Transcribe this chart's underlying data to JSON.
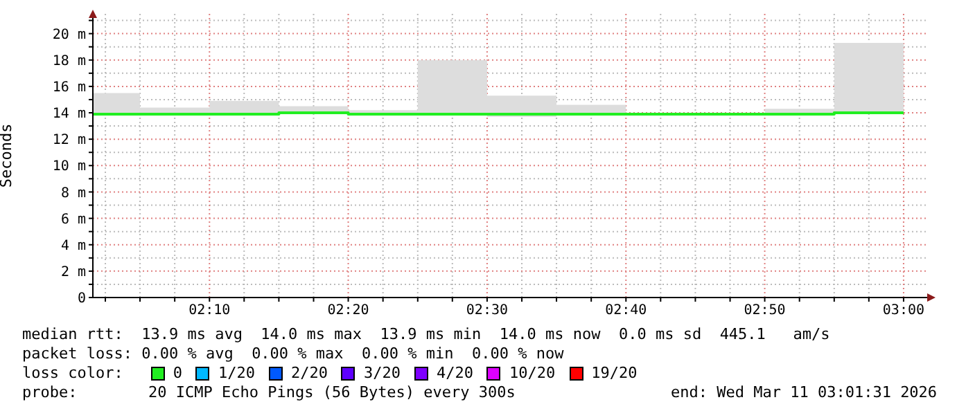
{
  "chart_data": {
    "type": "step",
    "ylabel": "Seconds",
    "x": [
      2.0267,
      2.0833,
      2.1667,
      2.25,
      2.3333,
      2.4167,
      2.5,
      2.5833,
      2.6667,
      2.75,
      2.8333,
      2.9167,
      3.0
    ],
    "series": [
      {
        "color": "#22ee22",
        "values": [
          13.9,
          13.9,
          13.9,
          14.0,
          13.9,
          13.9,
          13.9,
          13.9,
          13.9,
          13.9,
          13.9,
          14.0,
          14.0
        ],
        "lower": [
          14.0,
          14.0,
          14.0,
          14.0,
          14.0,
          14.0,
          13.7,
          14.0,
          13.9,
          13.9,
          14.0,
          14.0,
          14.0
        ],
        "upper": [
          15.5,
          14.4,
          14.9,
          14.5,
          14.2,
          18.0,
          15.3,
          14.6,
          13.9,
          13.9,
          14.3,
          19.3,
          19.3
        ]
      }
    ],
    "xlim": [
      2.0267,
      3.03
    ],
    "xticks": [
      {
        "value": 2.0417,
        "label": null
      },
      {
        "value": 2.0833,
        "label": null
      },
      {
        "value": 2.125,
        "label": null
      },
      {
        "value": 2.1667,
        "label": "02:10"
      },
      {
        "value": 2.2083,
        "label": null
      },
      {
        "value": 2.25,
        "label": null
      },
      {
        "value": 2.2917,
        "label": null
      },
      {
        "value": 2.3333,
        "label": "02:20"
      },
      {
        "value": 2.375,
        "label": null
      },
      {
        "value": 2.4167,
        "label": null
      },
      {
        "value": 2.4583,
        "label": null
      },
      {
        "value": 2.5,
        "label": "02:30"
      },
      {
        "value": 2.5417,
        "label": null
      },
      {
        "value": 2.5833,
        "label": null
      },
      {
        "value": 2.625,
        "label": null
      },
      {
        "value": 2.6667,
        "label": "02:40"
      },
      {
        "value": 2.7083,
        "label": null
      },
      {
        "value": 2.75,
        "label": null
      },
      {
        "value": 2.7917,
        "label": null
      },
      {
        "value": 2.8333,
        "label": "02:50"
      },
      {
        "value": 2.875,
        "label": null
      },
      {
        "value": 2.9167,
        "label": null
      },
      {
        "value": 2.9583,
        "label": null
      },
      {
        "value": 3.0,
        "label": "03:00"
      }
    ],
    "ylim": [
      0,
      21.5
    ],
    "yticks": [
      0,
      {
        "value": 1,
        "label": null
      },
      {
        "value": 2,
        "label": "2 m"
      },
      {
        "value": 3,
        "label": null
      },
      {
        "value": 4,
        "label": "4 m"
      },
      {
        "value": 5,
        "label": null
      },
      {
        "value": 6,
        "label": "6 m"
      },
      {
        "value": 7,
        "label": null
      },
      {
        "value": 8,
        "label": "8 m"
      },
      {
        "value": 9,
        "label": null
      },
      {
        "value": 10,
        "label": "10 m"
      },
      {
        "value": 11,
        "label": null
      },
      {
        "value": 12,
        "label": "12 m"
      },
      {
        "value": 13,
        "label": null
      },
      {
        "value": 14,
        "label": "14 m"
      },
      {
        "value": 15,
        "label": null
      },
      {
        "value": 16,
        "label": "16 m"
      },
      {
        "value": 17,
        "label": null
      },
      {
        "value": 18,
        "label": "18 m"
      },
      {
        "value": 19,
        "label": null
      },
      {
        "value": 20,
        "label": "20 m"
      },
      {
        "value": 21,
        "label": null
      }
    ],
    "grid": true,
    "marker": "none",
    "annotations": [
      "median rtt:  13.9 ms avg  14.0 ms max  13.9 ms min  14.0 ms now  0.0 ms sd  445.1   am/s",
      "packet loss: 0.00 % avg  0.00 % max  0.00 % min  0.00 % now",
      "loss color:",
      "0",
      "1/20",
      "2/20",
      "3/20",
      "4/20",
      "10/20",
      "19/20",
      "probe:",
      "20 ICMP Echo Pings (56 Bytes) every 300s",
      "end: Wed Mar 11 03:01:31 2026"
    ]
  }
}
